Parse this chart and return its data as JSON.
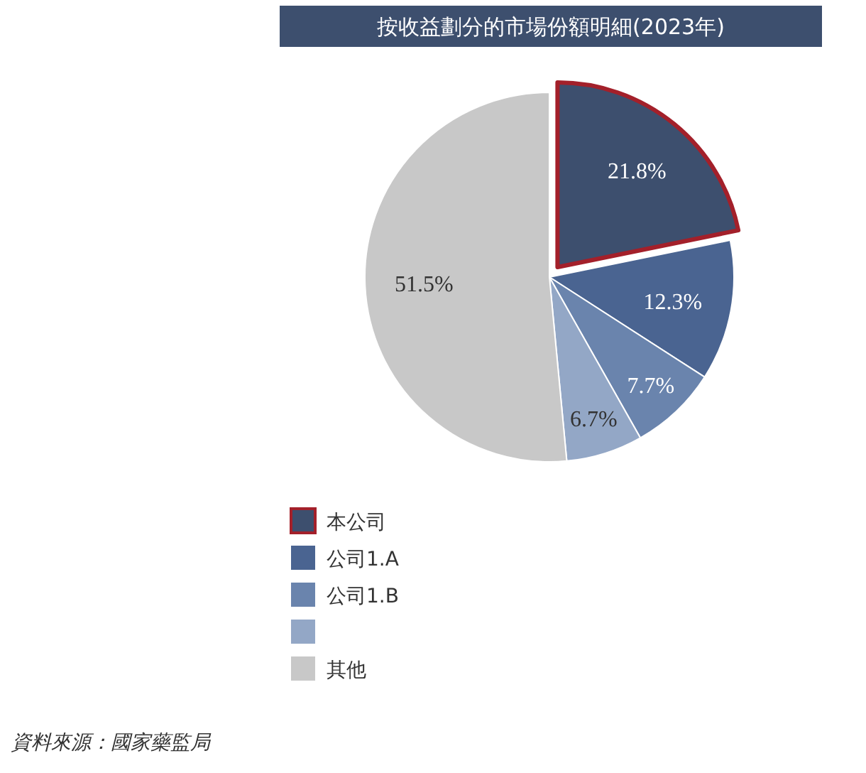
{
  "chart_data": {
    "type": "pie",
    "title": "按收益劃分的市場份額明細(2023年)",
    "categories": [
      "本公司",
      "公司1.A",
      "公司1.B",
      null,
      "其他"
    ],
    "values": [
      21.8,
      12.3,
      7.7,
      6.7,
      51.5
    ],
    "colors": [
      "#3d4f6e",
      "#4a6491",
      "#6a84ad",
      "#93a7c6",
      "#c8c8c8"
    ],
    "value_labels": [
      "21.8%",
      "12.3%",
      "7.7%",
      "6.7%",
      "51.5%"
    ],
    "legend": "bottom",
    "annotations": [
      "資料來源：國家藥監局"
    ]
  }
}
